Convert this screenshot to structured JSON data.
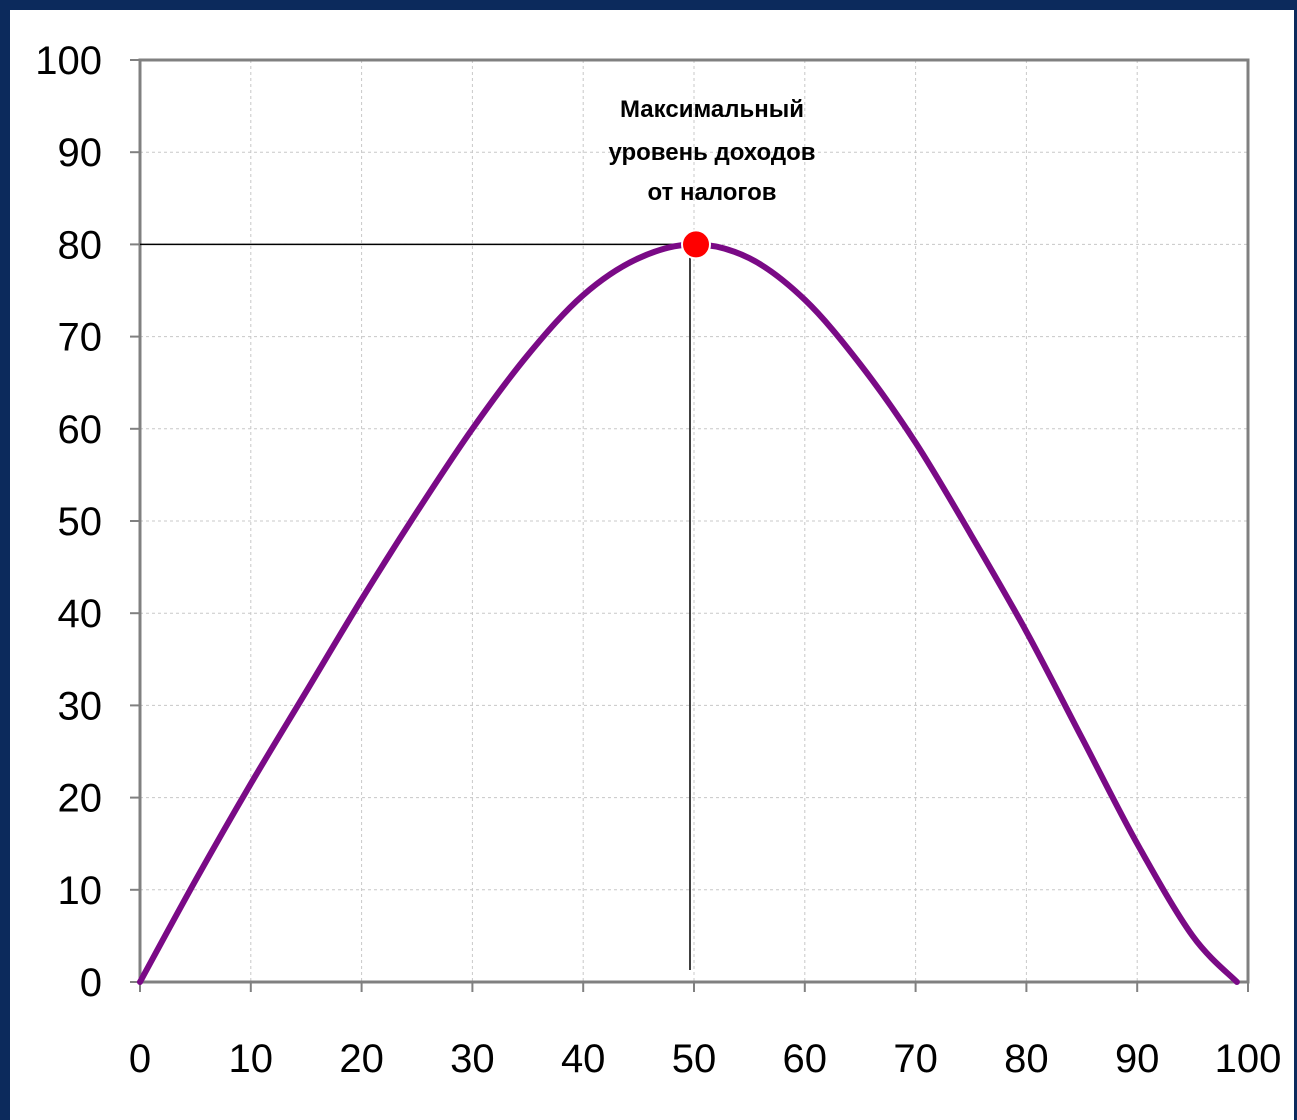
{
  "chart_data": {
    "type": "line",
    "title": "",
    "xlabel": "",
    "ylabel": "",
    "xlim": [
      0,
      100
    ],
    "ylim": [
      0,
      100
    ],
    "x_ticks": [
      0,
      10,
      20,
      30,
      40,
      50,
      60,
      70,
      80,
      90,
      100
    ],
    "y_ticks": [
      0,
      10,
      20,
      30,
      40,
      50,
      60,
      70,
      80,
      90,
      100
    ],
    "grid": true,
    "series": [
      {
        "color": "#7a0a86",
        "x": [
          0,
          5,
          10,
          15,
          20,
          25,
          30,
          35,
          40,
          45,
          50,
          55,
          60,
          65,
          70,
          75,
          80,
          85,
          90,
          95,
          99
        ],
        "y": [
          0,
          11,
          21.5,
          31.5,
          41.5,
          51,
          60,
          68,
          74.5,
          78.5,
          80,
          78.5,
          74,
          67,
          58.5,
          48.5,
          38,
          26.5,
          15,
          5,
          0
        ]
      }
    ],
    "max_point": {
      "x": 50,
      "y": 80,
      "color": "#ff0000"
    },
    "annotation": {
      "lines": [
        "Максимальный",
        "уровень доходов",
        "от налогов"
      ]
    }
  },
  "colors": {
    "frame": "#0c2a5c",
    "grid": "#c8c8c8",
    "axis": "#808080",
    "curve": "#7a0a86",
    "point": "#ff0000"
  }
}
